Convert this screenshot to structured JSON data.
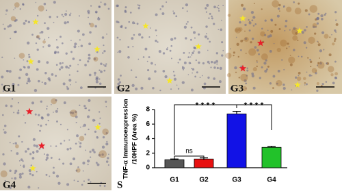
{
  "panels": [
    {
      "label": "G1"
    },
    {
      "label": "G2"
    },
    {
      "label": "G3"
    },
    {
      "label": "G4"
    }
  ],
  "chart_panel_label": "S",
  "chart_data": {
    "type": "bar",
    "y_label": [
      "TNF-α Immunoexpression",
      "/10HPF (Area %)"
    ],
    "categories": [
      "G1",
      "G2",
      "G3",
      "G4"
    ],
    "values": [
      1.1,
      1.2,
      7.4,
      2.8
    ],
    "errors": [
      0.1,
      0.15,
      0.35,
      0.15
    ],
    "colors": [
      "#555555",
      "#e81010",
      "#1212e6",
      "#22c22a"
    ],
    "ylim": [
      0,
      8
    ],
    "yticks": [
      0,
      2,
      4,
      6,
      8
    ],
    "annotations": [
      "ns",
      "* * * *",
      "* * * *"
    ]
  }
}
